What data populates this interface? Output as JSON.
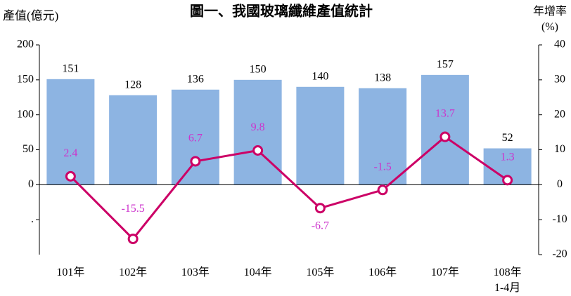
{
  "chart_data": {
    "type": "bar-line",
    "title": "圖一、我國玻璃纖維產值統計",
    "y_label": "產值(億元)",
    "y2_label": "年增率\n(%)",
    "categories": [
      "101年",
      "102年",
      "103年",
      "104年",
      "105年",
      "106年",
      "107年",
      "108年\n1-4月"
    ],
    "bars": {
      "color": "#8db4e2",
      "values": [
        151,
        128,
        136,
        150,
        140,
        138,
        157,
        52
      ]
    },
    "line": {
      "color": "#cc0066",
      "label_color": "#cc33cc",
      "axis": "y2",
      "values": [
        2.4,
        -15.5,
        6.7,
        9.8,
        -6.7,
        -1.5,
        13.7,
        1.3
      ]
    },
    "ylim": [
      -100,
      200
    ],
    "yticks": [
      {
        "value": -50,
        "label": "."
      },
      0,
      50,
      100,
      150,
      200
    ],
    "y2lim": [
      -20,
      40
    ],
    "y2ticks": [
      -20,
      -10,
      0,
      10,
      20,
      30,
      40
    ]
  }
}
